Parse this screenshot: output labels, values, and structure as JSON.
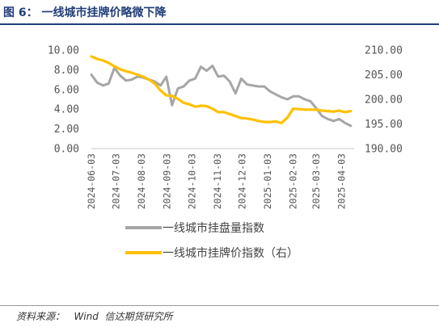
{
  "header": {
    "title": "图 6：  一线城市挂牌价略微下降"
  },
  "footer": {
    "source": "资料来源：   Wind  信达期货研究所"
  },
  "chart_data": {
    "type": "line",
    "x_ticks": [
      "2024-06-03",
      "2024-07-03",
      "2024-08-03",
      "2024-09-03",
      "2024-10-03",
      "2024-11-03",
      "2024-12-03",
      "2025-01-03",
      "2025-02-03",
      "2025-03-03",
      "2025-04-03"
    ],
    "y_left": {
      "min": 0,
      "max": 10,
      "ticks": [
        "0.00",
        "2.00",
        "4.00",
        "6.00",
        "8.00",
        "10.00"
      ]
    },
    "y_right": {
      "min": 190,
      "max": 210,
      "ticks": [
        "190.00",
        "195.00",
        "200.00",
        "205.00",
        "210.00"
      ]
    },
    "grid": false,
    "legend_position": "bottom",
    "series": [
      {
        "name": "一线城市挂盘量指数",
        "axis": "left",
        "color": "#a6a6a6",
        "points": [
          [
            "2024-06-03",
            7.5
          ],
          [
            "2024-06-10",
            6.7
          ],
          [
            "2024-06-17",
            6.4
          ],
          [
            "2024-06-24",
            6.6
          ],
          [
            "2024-07-01",
            8.2
          ],
          [
            "2024-07-08",
            7.4
          ],
          [
            "2024-07-15",
            6.9
          ],
          [
            "2024-07-22",
            7.0
          ],
          [
            "2024-07-29",
            7.3
          ],
          [
            "2024-08-05",
            7.2
          ],
          [
            "2024-08-12",
            7.0
          ],
          [
            "2024-08-19",
            6.8
          ],
          [
            "2024-08-26",
            6.4
          ],
          [
            "2024-09-02",
            7.3
          ],
          [
            "2024-09-09",
            4.4
          ],
          [
            "2024-09-16",
            6.1
          ],
          [
            "2024-09-23",
            6.3
          ],
          [
            "2024-09-30",
            6.9
          ],
          [
            "2024-10-07",
            7.1
          ],
          [
            "2024-10-14",
            8.3
          ],
          [
            "2024-10-21",
            7.9
          ],
          [
            "2024-10-28",
            8.4
          ],
          [
            "2024-11-04",
            7.3
          ],
          [
            "2024-11-11",
            7.4
          ],
          [
            "2024-11-18",
            6.8
          ],
          [
            "2024-11-25",
            5.6
          ],
          [
            "2024-12-02",
            7.1
          ],
          [
            "2024-12-09",
            6.5
          ],
          [
            "2024-12-16",
            6.4
          ],
          [
            "2024-12-23",
            6.3
          ],
          [
            "2024-12-30",
            6.3
          ],
          [
            "2025-01-06",
            5.8
          ],
          [
            "2025-01-13",
            5.5
          ],
          [
            "2025-01-20",
            5.2
          ],
          [
            "2025-01-27",
            5.0
          ],
          [
            "2025-02-03",
            5.3
          ],
          [
            "2025-02-10",
            5.3
          ],
          [
            "2025-02-17",
            5.0
          ],
          [
            "2025-02-24",
            4.8
          ],
          [
            "2025-03-03",
            4.1
          ],
          [
            "2025-03-10",
            3.3
          ],
          [
            "2025-03-17",
            3.0
          ],
          [
            "2025-03-24",
            2.8
          ],
          [
            "2025-03-31",
            3.0
          ],
          [
            "2025-04-07",
            2.6
          ],
          [
            "2025-04-14",
            2.3
          ]
        ]
      },
      {
        "name": "一线城市挂牌价指数（右）",
        "axis": "right",
        "color": "#ffc000",
        "points": [
          [
            "2024-06-03",
            208.7
          ],
          [
            "2024-06-10",
            208.2
          ],
          [
            "2024-06-17",
            207.9
          ],
          [
            "2024-06-24",
            207.4
          ],
          [
            "2024-07-01",
            206.7
          ],
          [
            "2024-07-08",
            206.1
          ],
          [
            "2024-07-15",
            205.7
          ],
          [
            "2024-07-22",
            205.4
          ],
          [
            "2024-07-29",
            205.0
          ],
          [
            "2024-08-05",
            204.6
          ],
          [
            "2024-08-12",
            204.0
          ],
          [
            "2024-08-19",
            203.2
          ],
          [
            "2024-08-26",
            201.8
          ],
          [
            "2024-09-02",
            200.8
          ],
          [
            "2024-09-09",
            200.7
          ],
          [
            "2024-09-16",
            200.1
          ],
          [
            "2024-09-23",
            199.3
          ],
          [
            "2024-09-30",
            199.0
          ],
          [
            "2024-10-07",
            198.5
          ],
          [
            "2024-10-14",
            198.7
          ],
          [
            "2024-10-21",
            198.6
          ],
          [
            "2024-10-28",
            198.1
          ],
          [
            "2024-11-04",
            197.4
          ],
          [
            "2024-11-11",
            197.4
          ],
          [
            "2024-11-18",
            197.0
          ],
          [
            "2024-11-25",
            196.6
          ],
          [
            "2024-12-02",
            196.2
          ],
          [
            "2024-12-09",
            196.1
          ],
          [
            "2024-12-16",
            195.9
          ],
          [
            "2024-12-23",
            195.6
          ],
          [
            "2024-12-30",
            195.4
          ],
          [
            "2025-01-06",
            195.4
          ],
          [
            "2025-01-13",
            195.5
          ],
          [
            "2025-01-20",
            195.2
          ],
          [
            "2025-01-27",
            196.3
          ],
          [
            "2025-02-03",
            198.1
          ],
          [
            "2025-02-10",
            198.0
          ],
          [
            "2025-02-17",
            197.9
          ],
          [
            "2025-02-24",
            197.9
          ],
          [
            "2025-03-03",
            197.9
          ],
          [
            "2025-03-10",
            197.7
          ],
          [
            "2025-03-17",
            197.6
          ],
          [
            "2025-03-24",
            197.5
          ],
          [
            "2025-03-31",
            197.7
          ],
          [
            "2025-04-07",
            197.4
          ],
          [
            "2025-04-14",
            197.6
          ]
        ]
      }
    ]
  }
}
